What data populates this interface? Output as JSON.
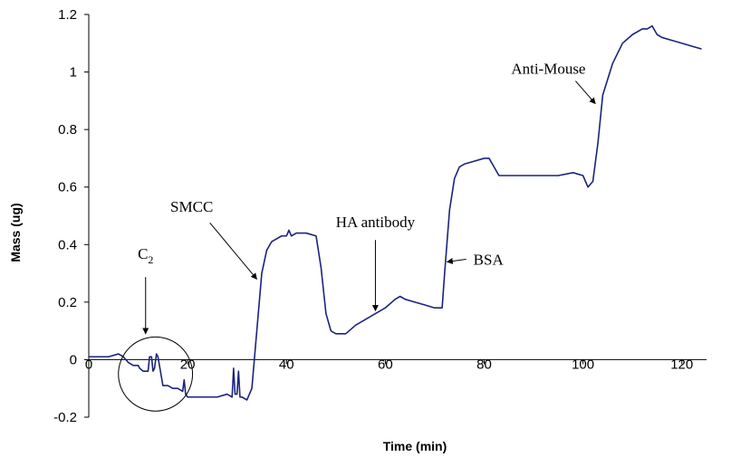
{
  "chart_data": {
    "type": "line",
    "title": "",
    "xlabel": "Time (min)",
    "ylabel": "Mass (ug)",
    "xlim": [
      0,
      125
    ],
    "ylim": [
      -0.2,
      1.2
    ],
    "x_ticks": [
      "0",
      "20",
      "40",
      "60",
      "80",
      "100",
      "120"
    ],
    "y_ticks": [
      "-0.2",
      "0",
      "0.2",
      "0.4",
      "0.6",
      "0.8",
      "1",
      "1.2"
    ],
    "grid": false,
    "legend": "none",
    "series": [
      {
        "color": "#1a237e",
        "x": [
          0,
          2,
          4,
          6,
          7,
          8,
          9,
          10,
          10.3,
          11,
          12,
          12.3,
          12.7,
          13,
          13.3,
          13.7,
          14,
          15,
          16,
          17,
          18,
          19,
          19.3,
          19.6,
          20,
          21,
          22,
          24,
          26,
          28,
          29,
          29.3,
          29.6,
          30,
          30.3,
          30.6,
          31,
          32,
          33,
          34,
          35,
          36,
          37,
          38,
          39,
          40,
          40.5,
          41,
          42,
          44,
          46,
          47,
          48,
          49,
          50,
          52,
          54,
          56,
          58,
          60,
          62,
          63,
          64,
          66,
          68,
          70,
          71.5,
          72,
          73,
          74,
          75,
          76,
          78,
          80,
          81,
          82,
          83,
          85,
          90,
          95,
          98,
          100,
          101,
          102,
          103,
          104,
          106,
          108,
          110,
          112,
          113,
          114,
          115,
          116,
          118,
          120,
          122,
          124
        ],
        "y": [
          0.01,
          0.01,
          0.01,
          0.02,
          0.01,
          -0.01,
          -0.02,
          -0.02,
          -0.03,
          -0.04,
          -0.04,
          0.01,
          0.01,
          -0.04,
          -0.03,
          0.02,
          0.01,
          -0.09,
          -0.09,
          -0.1,
          -0.1,
          -0.11,
          -0.07,
          -0.12,
          -0.13,
          -0.13,
          -0.13,
          -0.13,
          -0.13,
          -0.12,
          -0.13,
          -0.03,
          -0.12,
          -0.12,
          -0.04,
          -0.13,
          -0.13,
          -0.14,
          -0.1,
          0.1,
          0.3,
          0.38,
          0.41,
          0.42,
          0.43,
          0.43,
          0.45,
          0.43,
          0.44,
          0.44,
          0.43,
          0.32,
          0.16,
          0.1,
          0.09,
          0.09,
          0.12,
          0.14,
          0.16,
          0.18,
          0.21,
          0.22,
          0.21,
          0.2,
          0.19,
          0.18,
          0.18,
          0.3,
          0.52,
          0.63,
          0.67,
          0.68,
          0.69,
          0.7,
          0.7,
          0.67,
          0.64,
          0.64,
          0.64,
          0.64,
          0.65,
          0.64,
          0.6,
          0.62,
          0.75,
          0.92,
          1.03,
          1.1,
          1.13,
          1.15,
          1.15,
          1.16,
          1.13,
          1.12,
          1.11,
          1.1,
          1.09,
          1.08
        ]
      }
    ],
    "annotations": [
      {
        "label": "C",
        "subscript": "2",
        "x": 11.5,
        "y": 0.35,
        "arrow_to": [
          11.5,
          0.09
        ]
      },
      {
        "label": "SMCC",
        "x": 19,
        "y": 0.52,
        "arrow_to": [
          34,
          0.28
        ]
      },
      {
        "label": "HA antibody",
        "x": 58,
        "y": 0.46,
        "arrow_to": [
          58,
          0.17
        ]
      },
      {
        "label": "BSA",
        "x": 81.5,
        "y": 0.33,
        "arrow_to": [
          72.5,
          0.34
        ]
      },
      {
        "label": "Anti-Mouse",
        "x": 93,
        "y": 1.0,
        "arrow_to": [
          102.5,
          0.89
        ]
      }
    ],
    "circle_highlight": {
      "cx": 13.5,
      "cy": -0.05,
      "r_x_units": 7.5
    }
  }
}
